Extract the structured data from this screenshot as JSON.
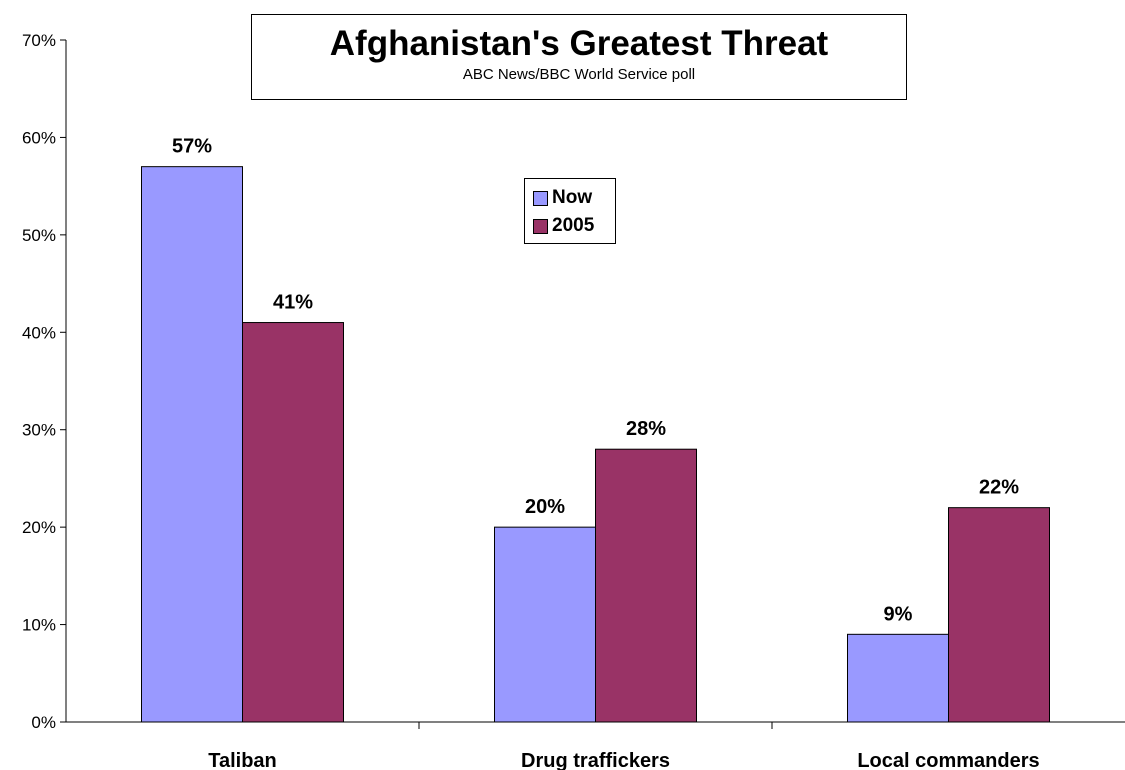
{
  "chart_data": {
    "type": "bar",
    "title": "Afghanistan's Greatest Threat",
    "subtitle": "ABC News/BBC World Service poll",
    "categories": [
      "Taliban",
      "Drug traffickers",
      "Local commanders"
    ],
    "series": [
      {
        "name": "Now",
        "values": [
          57,
          20,
          9
        ],
        "labels": [
          "57%",
          "20%",
          "9%"
        ],
        "color": "#9999ff"
      },
      {
        "name": "2005",
        "values": [
          41,
          28,
          22
        ],
        "labels": [
          "41%",
          "28%",
          "22%"
        ],
        "color": "#993366"
      }
    ],
    "ylim": [
      0,
      70
    ],
    "yticks": [
      "0%",
      "10%",
      "20%",
      "30%",
      "40%",
      "50%",
      "60%",
      "70%"
    ],
    "grid": false,
    "legend_position": "center-top"
  }
}
